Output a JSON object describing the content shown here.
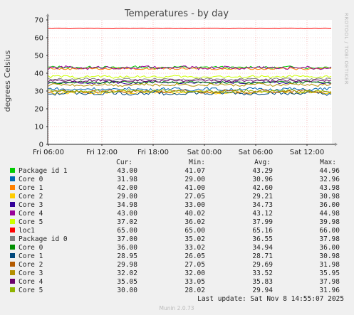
{
  "chart_data": {
    "type": "line",
    "title": "Temperatures - by day",
    "ylabel": "degrees Celsius",
    "ylim": [
      0,
      70
    ],
    "y_ticks": [
      "0",
      "10",
      "20",
      "30",
      "40",
      "50",
      "60",
      "70"
    ],
    "x_ticks": [
      "Fri 06:00",
      "Fri 12:00",
      "Fri 18:00",
      "Sat 00:00",
      "Sat 06:00",
      "Sat 12:00"
    ],
    "grid": true,
    "legend_position": "bottom",
    "column_headers": [
      "Cur:",
      "Min:",
      "Avg:",
      "Max:"
    ],
    "series": [
      {
        "name": "Package id 1",
        "color": "#00cc00",
        "cur": "43.00",
        "min": "41.07",
        "avg": "43.29",
        "max": "44.96",
        "value": 43.3,
        "noise": 0.6
      },
      {
        "name": "Core 0",
        "color": "#0066b3",
        "cur": "31.98",
        "min": "29.00",
        "avg": "30.96",
        "max": "32.96",
        "value": 31.0,
        "noise": 0.8
      },
      {
        "name": "Core 1",
        "color": "#ff8000",
        "cur": "42.00",
        "min": "41.00",
        "avg": "42.60",
        "max": "43.98",
        "value": 42.6,
        "noise": 0.5
      },
      {
        "name": "Core 2",
        "color": "#ffcc00",
        "cur": "29.00",
        "min": "27.05",
        "avg": "29.21",
        "max": "30.98",
        "value": 29.2,
        "noise": 0.8
      },
      {
        "name": "Core 3",
        "color": "#330099",
        "cur": "34.98",
        "min": "33.00",
        "avg": "34.73",
        "max": "36.00",
        "value": 34.7,
        "noise": 0.6
      },
      {
        "name": "Core 4",
        "color": "#990099",
        "cur": "43.00",
        "min": "40.02",
        "avg": "43.12",
        "max": "44.98",
        "value": 43.1,
        "noise": 0.8
      },
      {
        "name": "Core 5",
        "color": "#ccff00",
        "cur": "37.02",
        "min": "36.02",
        "avg": "37.99",
        "max": "39.98",
        "value": 38.0,
        "noise": 0.7
      },
      {
        "name": "loc1",
        "color": "#ff0000",
        "cur": "65.00",
        "min": "65.00",
        "avg": "65.16",
        "max": "66.00",
        "value": 65.2,
        "noise": 0.15
      },
      {
        "name": "Package id 0",
        "color": "#808080",
        "cur": "37.00",
        "min": "35.02",
        "avg": "36.55",
        "max": "37.98",
        "value": 36.6,
        "noise": 0.6
      },
      {
        "name": "Core 0",
        "color": "#008f00",
        "cur": "36.00",
        "min": "33.02",
        "avg": "34.94",
        "max": "36.00",
        "value": 34.9,
        "noise": 0.6
      },
      {
        "name": "Core 1",
        "color": "#00487d",
        "cur": "28.95",
        "min": "26.05",
        "avg": "28.71",
        "max": "30.98",
        "value": 28.7,
        "noise": 0.9
      },
      {
        "name": "Core 2",
        "color": "#b35a00",
        "cur": "29.98",
        "min": "27.05",
        "avg": "29.69",
        "max": "31.98",
        "value": 29.7,
        "noise": 0.8
      },
      {
        "name": "Core 3",
        "color": "#b38f00",
        "cur": "32.02",
        "min": "32.00",
        "avg": "33.52",
        "max": "35.95",
        "value": 33.5,
        "noise": 0.7
      },
      {
        "name": "Core 4",
        "color": "#6b006b",
        "cur": "35.05",
        "min": "33.05",
        "avg": "35.83",
        "max": "37.98",
        "value": 35.8,
        "noise": 0.7
      },
      {
        "name": "Core 5",
        "color": "#8fb300",
        "cur": "30.00",
        "min": "28.02",
        "avg": "29.94",
        "max": "31.96",
        "value": 29.9,
        "noise": 0.8
      }
    ]
  },
  "side_label": "RRDTOOL / TOBI OETIKER",
  "last_update": "Last update: Sat Nov  8 14:55:07 2025",
  "footer": "Munin 2.0.73"
}
